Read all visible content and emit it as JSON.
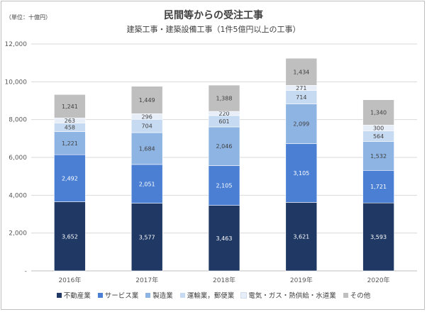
{
  "chart_data": {
    "type": "bar",
    "stacked": true,
    "title": "民間等からの受注工事",
    "subtitle": "建築工事・建築設備工事（1件5億円以上の工事）",
    "unit_note": "（単位：十億円）",
    "categories": [
      "2016年",
      "2017年",
      "2018年",
      "2019年",
      "2020年"
    ],
    "series": [
      {
        "name": "不動産業",
        "color": "#1f3864",
        "values": [
          3652,
          3577,
          3463,
          3621,
          3593
        ],
        "labels": [
          "3,652",
          "3,577",
          "3,463",
          "3,621",
          "3,593"
        ]
      },
      {
        "name": "サービス業",
        "color": "#4a7fd4",
        "values": [
          2492,
          2051,
          2105,
          3105,
          1721
        ],
        "labels": [
          "2,492",
          "2,051",
          "2,105",
          "3,105",
          "1,721"
        ]
      },
      {
        "name": "製造業",
        "color": "#8eb4e3",
        "values": [
          1221,
          1684,
          2046,
          2099,
          1532
        ],
        "labels": [
          "1,221",
          "1,684",
          "2,046",
          "2,099",
          "1,532"
        ]
      },
      {
        "name": "運輸業，郵便業",
        "color": "#c6dbf2",
        "values": [
          458,
          704,
          601,
          714,
          564
        ],
        "labels": [
          "458",
          "704",
          "601",
          "714",
          "564"
        ]
      },
      {
        "name": "電気・ガス・熱供給・水道業",
        "color": "#e7eef8",
        "values": [
          263,
          296,
          220,
          271,
          300
        ],
        "labels": [
          "263",
          "296",
          "220",
          "271",
          "300"
        ]
      },
      {
        "name": "その他",
        "color": "#bfbfbf",
        "values": [
          1241,
          1449,
          1388,
          1434,
          1340
        ],
        "labels": [
          "1,241",
          "1,449",
          "1,388",
          "1,434",
          "1,340"
        ]
      }
    ],
    "ylim": [
      0,
      12000
    ],
    "yticks": [
      0,
      2000,
      4000,
      6000,
      8000,
      10000,
      12000
    ],
    "ytick_labels": [
      "-",
      "2,000",
      "4,000",
      "6,000",
      "8,000",
      "10,000",
      "12,000"
    ],
    "grid": true,
    "legend_position": "bottom"
  }
}
